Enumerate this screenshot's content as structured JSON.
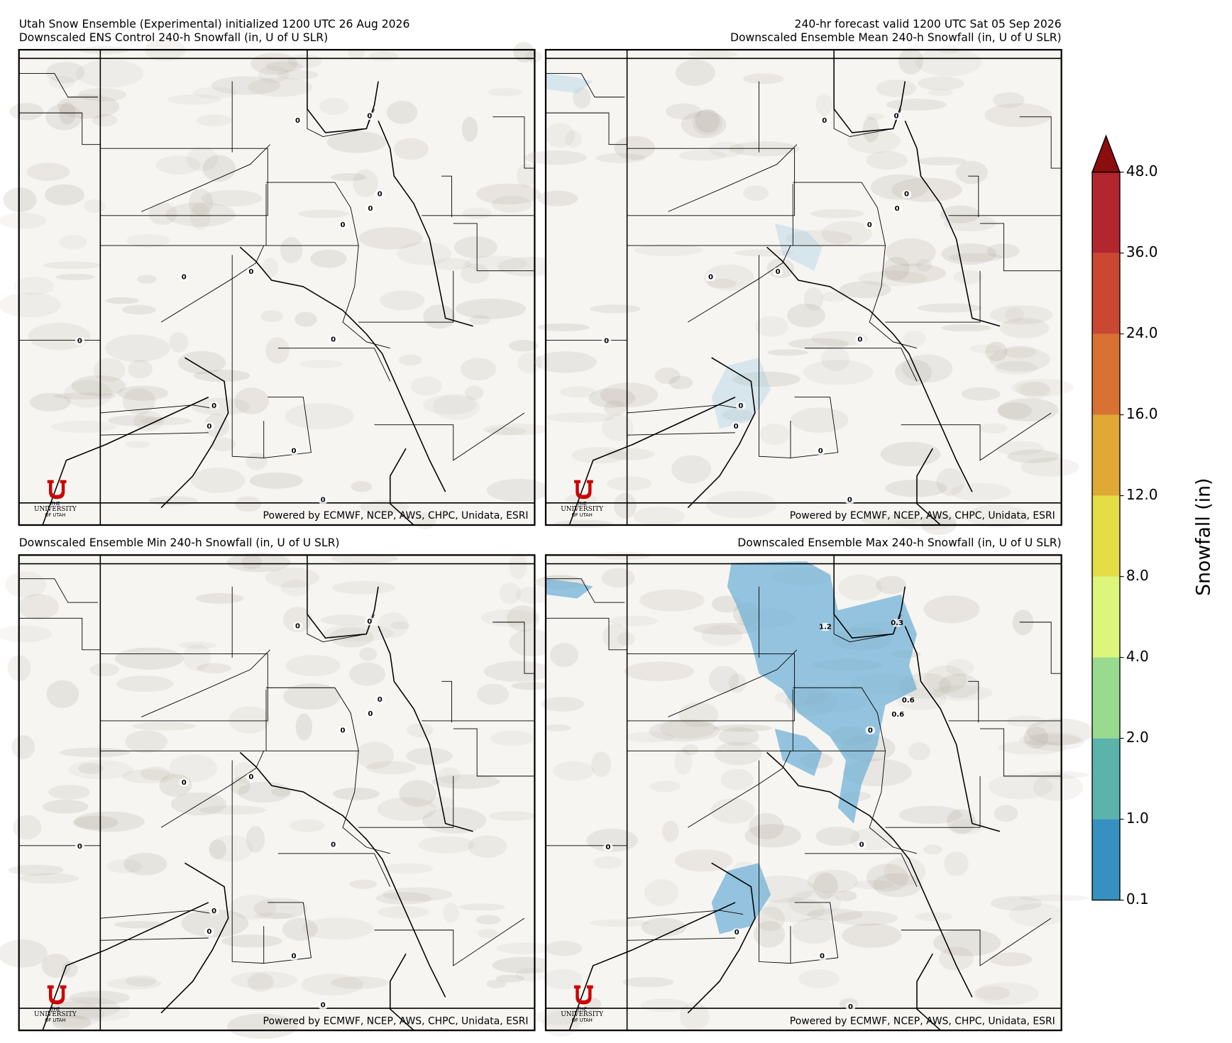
{
  "header": {
    "init": "Utah Snow Ensemble (Experimental) initialized 1200 UTC 26 Aug 2026",
    "valid": "240-hr forecast valid 1200 UTC Sat 05 Sep 2026"
  },
  "panels": [
    {
      "title": "Downscaled ENS Control 240-h Snowfall (in, U of U SLR)",
      "labels": [
        "0",
        "0",
        "0",
        "0",
        "0",
        "0",
        "0",
        "0",
        "0",
        "0",
        "0",
        "0",
        "0"
      ]
    },
    {
      "title": "Downscaled Ensemble Mean 240-h Snowfall (in, U of U SLR)",
      "labels": [
        "0",
        "0",
        "0",
        "0",
        "0",
        "0",
        "0",
        "0",
        "0",
        "0",
        "0",
        "0",
        "0"
      ]
    },
    {
      "title": "Downscaled Ensemble Min 240-h Snowfall (in, U of U SLR)",
      "labels": [
        "0",
        "0",
        "0",
        "0",
        "0",
        "0",
        "0",
        "0",
        "0",
        "0",
        "0",
        "0",
        "0"
      ]
    },
    {
      "title": "Downscaled Ensemble Max 240-h Snowfall (in, U of U SLR)",
      "labels": [
        "1.2",
        "0.3",
        "0.6",
        "0.6",
        "0",
        "0",
        "0",
        "0",
        "0",
        "0"
      ]
    }
  ],
  "credit": "Powered by ECMWF, NCEP, AWS, CHPC, Unidata, ESRI",
  "logo": {
    "the": "THE",
    "name": "UNIVERSITY",
    "of": "OF UTAH"
  },
  "colorbar": {
    "label": "Snowfall (in)",
    "colors": [
      "#3690c0",
      "#5ab4ac",
      "#98db8f",
      "#dcf57a",
      "#e5dd45",
      "#dfa934",
      "#d87232",
      "#c84832",
      "#b3262d"
    ],
    "extend_color": "#8b0e0f",
    "ticks": [
      {
        "value": 0.1,
        "label": "0.1"
      },
      {
        "value": 1,
        "label": "1.0"
      },
      {
        "value": 2,
        "label": "2.0"
      },
      {
        "value": 4,
        "label": "4.0"
      },
      {
        "value": 8,
        "label": "8.0"
      },
      {
        "value": 12,
        "label": "12.0"
      },
      {
        "value": 16,
        "label": "16.0"
      },
      {
        "value": 24,
        "label": "24.0"
      },
      {
        "value": 36,
        "label": "36.0"
      },
      {
        "value": 48,
        "label": "48.0"
      }
    ]
  }
}
